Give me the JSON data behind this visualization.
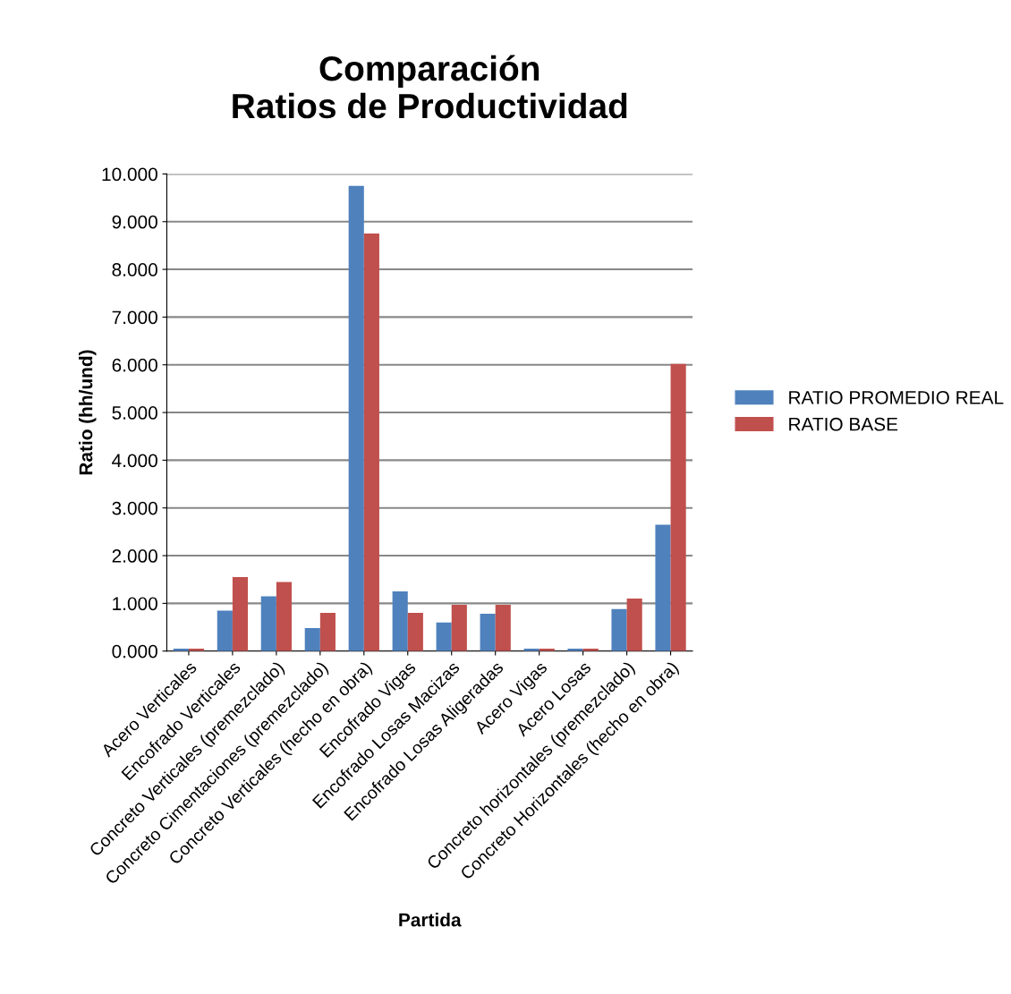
{
  "chart_data": {
    "type": "bar",
    "title": "Comparación\nRatios de Productividad",
    "xlabel": "Partida",
    "ylabel": "Ratio (hh/und)",
    "categories": [
      "Acero Verticales",
      "Encofrado Verticales",
      "Concreto Verticales (premezclado)",
      "Concreto Cimentaciones (premezclado)",
      "Concreto Verticales (hecho en obra)",
      "Encofrado Vigas",
      "Encofrado Losas Macizas",
      "Encofrado Losas Aligeradas",
      "Acero Vigas",
      "Acero Losas",
      "Concreto horizontales (premezclado)",
      "Concreto Horizontales (hecho en obra)"
    ],
    "series": [
      {
        "name": "RATIO PROMEDIO REAL",
        "color": "#4f81bd",
        "values": [
          0.05,
          0.85,
          1.15,
          0.48,
          9.75,
          1.25,
          0.6,
          0.78,
          0.05,
          0.05,
          0.88,
          2.65
        ]
      },
      {
        "name": "RATIO BASE",
        "color": "#c0504d",
        "values": [
          0.05,
          1.55,
          1.45,
          0.8,
          8.75,
          0.8,
          0.97,
          0.97,
          0.05,
          0.05,
          1.1,
          6.02
        ]
      }
    ],
    "ylim": [
      0,
      10
    ],
    "yticks": [
      {
        "value": 0,
        "label": "0.000"
      },
      {
        "value": 1,
        "label": "1.000"
      },
      {
        "value": 2,
        "label": "2.000"
      },
      {
        "value": 3,
        "label": "3.000"
      },
      {
        "value": 4,
        "label": "4.000"
      },
      {
        "value": 5,
        "label": "5.000"
      },
      {
        "value": 6,
        "label": "6.000"
      },
      {
        "value": 7,
        "label": "7.000"
      },
      {
        "value": 8,
        "label": "8.000"
      },
      {
        "value": 9,
        "label": "9.000"
      },
      {
        "value": 10,
        "label": "10.000"
      }
    ],
    "grid": "y",
    "legend": "right"
  }
}
